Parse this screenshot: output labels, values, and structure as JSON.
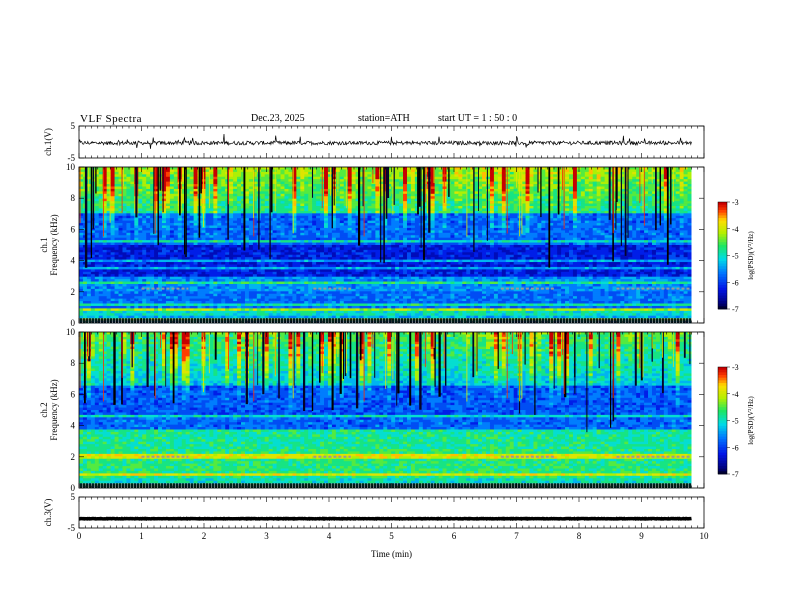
{
  "header": {
    "title": "VLF  Spectra",
    "date": "Dec.23, 2025",
    "station": "station=ATH",
    "start": "start  UT  =    1 : 50 : 0"
  },
  "chart_data": [
    {
      "type": "line",
      "name": "ch1-waveform",
      "ylabel": "ch.1(V)",
      "ylim": [
        -5,
        5
      ],
      "yticks": [
        "5",
        "-5"
      ],
      "xlim": [
        0,
        10
      ],
      "baseline_v": -0.3,
      "amplitude_v": 1.2
    },
    {
      "type": "heatmap",
      "name": "ch1-spectrogram",
      "ylabel": "ch.1\nFrequency  (kHz)",
      "ylim": [
        0,
        10
      ],
      "yticks": [
        "0",
        "2",
        "4",
        "6",
        "8",
        "10"
      ],
      "xlim": [
        0,
        9.8
      ],
      "colorbar": {
        "label": "log(PSD)(V²/Hz)",
        "range": [
          -7,
          -3
        ],
        "ticks": [
          "-3",
          "-4",
          "-5",
          "-6",
          "-7"
        ]
      }
    },
    {
      "type": "heatmap",
      "name": "ch2-spectrogram",
      "ylabel": "ch.2\nFrequency  (kHz)",
      "ylim": [
        0,
        10
      ],
      "yticks": [
        "0",
        "2",
        "4",
        "6",
        "8",
        "10"
      ],
      "xlim": [
        0,
        9.8
      ],
      "colorbar": {
        "label": "log(PSD)(V²/Hz)",
        "range": [
          -7,
          -3
        ],
        "ticks": [
          "-3",
          "-4",
          "-5",
          "-6",
          "-7"
        ]
      }
    },
    {
      "type": "line",
      "name": "ch3-waveform",
      "ylabel": "ch.3(V)",
      "ylim": [
        -5,
        5
      ],
      "yticks": [
        "5",
        "-5"
      ],
      "xlim": [
        0,
        10
      ],
      "baseline_v": -2.0,
      "amplitude_v": 0.15
    }
  ],
  "xaxis": {
    "label": "Time  (min)",
    "range": [
      0,
      10
    ],
    "ticks": [
      "0",
      "1",
      "2",
      "3",
      "4",
      "5",
      "6",
      "7",
      "8",
      "9",
      "10"
    ]
  }
}
